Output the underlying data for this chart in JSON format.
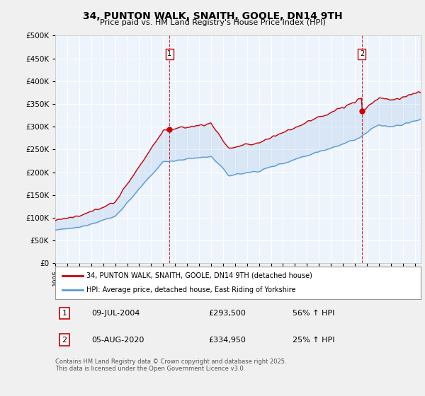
{
  "title": "34, PUNTON WALK, SNAITH, GOOLE, DN14 9TH",
  "subtitle": "Price paid vs. HM Land Registry's House Price Index (HPI)",
  "legend_line1": "34, PUNTON WALK, SNAITH, GOOLE, DN14 9TH (detached house)",
  "legend_line2": "HPI: Average price, detached house, East Riding of Yorkshire",
  "annotation1_label": "1",
  "annotation1_date": "09-JUL-2004",
  "annotation1_price": "£293,500",
  "annotation1_hpi": "56% ↑ HPI",
  "annotation2_label": "2",
  "annotation2_date": "05-AUG-2020",
  "annotation2_price": "£334,950",
  "annotation2_hpi": "25% ↑ HPI",
  "footer": "Contains HM Land Registry data © Crown copyright and database right 2025.\nThis data is licensed under the Open Government Licence v3.0.",
  "red_color": "#cc0000",
  "blue_color": "#5b9bd5",
  "fill_color": "#d6e8f7",
  "background_color": "#f0f0f0",
  "plot_bg_color": "#eef4fb",
  "ylim": [
    0,
    500000
  ],
  "xlim_start": 1995.0,
  "xlim_end": 2025.5,
  "purchase1_year": 2004.52,
  "purchase1_price": 293500,
  "purchase2_year": 2020.59,
  "purchase2_price": 334950
}
